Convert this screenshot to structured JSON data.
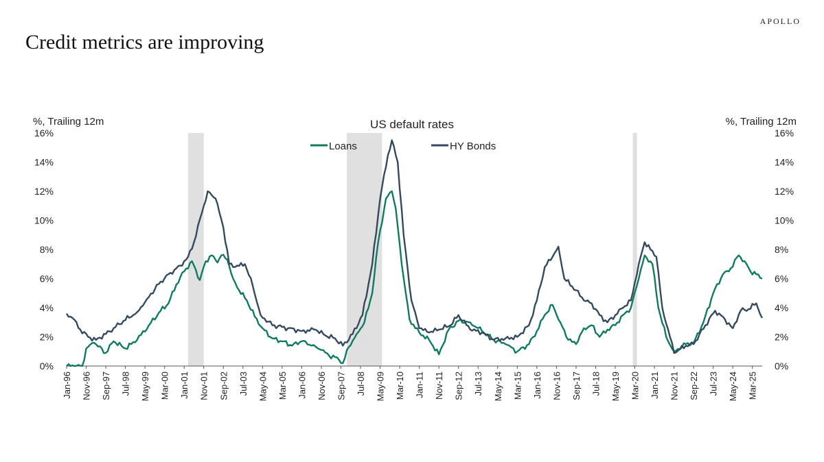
{
  "header": {
    "brand": "APOLLO",
    "headline": "Credit metrics are improving"
  },
  "colors": {
    "loans": "#0f7a5f",
    "hy_bonds": "#34495e",
    "recession_shade": "#e0e0e0",
    "axis": "#555555"
  },
  "chart_data": {
    "type": "line",
    "title": "US default rates",
    "ylabel_left": "%, Trailing 12m",
    "ylabel_right": "%, Trailing 12m",
    "ylim": [
      0,
      16
    ],
    "y_ticks": [
      "0%",
      "2%",
      "4%",
      "6%",
      "8%",
      "10%",
      "12%",
      "14%",
      "16%"
    ],
    "x_range": [
      "1996-01",
      "2025-08"
    ],
    "x_ticks": [
      "Jan-96",
      "Nov-96",
      "Sep-97",
      "Jul-98",
      "May-99",
      "Mar-00",
      "Jan-01",
      "Nov-01",
      "Sep-02",
      "Jul-03",
      "May-04",
      "Mar-05",
      "Jan-06",
      "Nov-06",
      "Sep-07",
      "Jul-08",
      "May-09",
      "Mar-10",
      "Jan-11",
      "Nov-11",
      "Sep-12",
      "Jul-13",
      "May-14",
      "Mar-15",
      "Jan-16",
      "Nov-16",
      "Sep-17",
      "Jul-18",
      "May-19",
      "Mar-20",
      "Jan-21",
      "Nov-21",
      "Sep-22",
      "Jul-23",
      "May-24",
      "Mar-25"
    ],
    "legend_position": "top-center",
    "grid": false,
    "recessions": [
      {
        "start": "2001-03",
        "end": "2001-11"
      },
      {
        "start": "2007-12",
        "end": "2009-06"
      },
      {
        "start": "2020-02",
        "end": "2020-04"
      }
    ],
    "series": [
      {
        "name": "Loans",
        "points": [
          [
            "1996-01",
            0.0
          ],
          [
            "1996-09",
            0.0
          ],
          [
            "1996-11",
            1.2
          ],
          [
            "1997-03",
            1.6
          ],
          [
            "1997-09",
            0.9
          ],
          [
            "1998-01",
            1.7
          ],
          [
            "1998-07",
            1.2
          ],
          [
            "1999-01",
            1.8
          ],
          [
            "1999-07",
            2.8
          ],
          [
            "2000-01",
            3.8
          ],
          [
            "2000-05",
            4.3
          ],
          [
            "2000-09",
            5.6
          ],
          [
            "2001-01",
            6.5
          ],
          [
            "2001-05",
            7.2
          ],
          [
            "2001-07",
            6.6
          ],
          [
            "2001-09",
            5.9
          ],
          [
            "2001-12",
            7.2
          ],
          [
            "2002-03",
            7.6
          ],
          [
            "2002-06",
            7.1
          ],
          [
            "2002-08",
            7.6
          ],
          [
            "2002-11",
            7.3
          ],
          [
            "2003-02",
            6.0
          ],
          [
            "2003-05",
            5.2
          ],
          [
            "2003-09",
            4.5
          ],
          [
            "2004-01",
            3.4
          ],
          [
            "2004-05",
            2.6
          ],
          [
            "2004-10",
            1.9
          ],
          [
            "2005-03",
            1.7
          ],
          [
            "2005-08",
            1.4
          ],
          [
            "2006-01",
            1.7
          ],
          [
            "2006-06",
            1.4
          ],
          [
            "2006-11",
            1.1
          ],
          [
            "2007-03",
            0.7
          ],
          [
            "2007-07",
            0.6
          ],
          [
            "2007-10",
            0.2
          ],
          [
            "2008-01",
            1.3
          ],
          [
            "2008-05",
            2.2
          ],
          [
            "2008-09",
            3.0
          ],
          [
            "2009-01",
            5.0
          ],
          [
            "2009-04",
            8.5
          ],
          [
            "2009-08",
            11.5
          ],
          [
            "2009-11",
            12.0
          ],
          [
            "2010-01",
            10.8
          ],
          [
            "2010-04",
            7.0
          ],
          [
            "2010-08",
            3.2
          ],
          [
            "2011-01",
            2.3
          ],
          [
            "2011-06",
            1.8
          ],
          [
            "2011-11",
            0.8
          ],
          [
            "2012-04",
            2.5
          ],
          [
            "2012-09",
            3.1
          ],
          [
            "2013-03",
            3.0
          ],
          [
            "2013-09",
            2.4
          ],
          [
            "2014-03",
            1.8
          ],
          [
            "2014-09",
            1.5
          ],
          [
            "2015-03",
            1.0
          ],
          [
            "2015-09",
            1.5
          ],
          [
            "2016-01",
            2.4
          ],
          [
            "2016-05",
            3.5
          ],
          [
            "2016-09",
            4.2
          ],
          [
            "2017-01",
            3.0
          ],
          [
            "2017-05",
            1.8
          ],
          [
            "2017-09",
            1.5
          ],
          [
            "2018-01",
            2.6
          ],
          [
            "2018-05",
            2.8
          ],
          [
            "2018-09",
            2.0
          ],
          [
            "2019-01",
            2.5
          ],
          [
            "2019-05",
            2.8
          ],
          [
            "2019-09",
            3.5
          ],
          [
            "2020-01",
            4.0
          ],
          [
            "2020-05",
            6.0
          ],
          [
            "2020-08",
            7.6
          ],
          [
            "2020-12",
            7.0
          ],
          [
            "2021-03",
            4.0
          ],
          [
            "2021-07",
            2.0
          ],
          [
            "2021-11",
            1.0
          ],
          [
            "2022-05",
            1.5
          ],
          [
            "2022-09",
            1.6
          ],
          [
            "2023-02",
            3.0
          ],
          [
            "2023-07",
            5.0
          ],
          [
            "2023-12",
            6.3
          ],
          [
            "2024-03",
            6.5
          ],
          [
            "2024-08",
            7.6
          ],
          [
            "2024-11",
            7.2
          ],
          [
            "2025-02",
            6.5
          ],
          [
            "2025-05",
            6.3
          ],
          [
            "2025-08",
            6.0
          ]
        ]
      },
      {
        "name": "HY Bonds",
        "points": [
          [
            "1996-01",
            3.6
          ],
          [
            "1996-04",
            3.3
          ],
          [
            "1996-08",
            2.5
          ],
          [
            "1996-12",
            2.0
          ],
          [
            "1997-04",
            1.8
          ],
          [
            "1997-09",
            2.2
          ],
          [
            "1998-01",
            2.6
          ],
          [
            "1998-06",
            3.1
          ],
          [
            "1999-01",
            3.7
          ],
          [
            "1999-06",
            4.6
          ],
          [
            "2000-01",
            5.8
          ],
          [
            "2000-06",
            6.4
          ],
          [
            "2000-11",
            6.9
          ],
          [
            "2001-03",
            7.5
          ],
          [
            "2001-06",
            8.5
          ],
          [
            "2001-10",
            10.5
          ],
          [
            "2002-01",
            12.0
          ],
          [
            "2002-05",
            11.5
          ],
          [
            "2002-09",
            9.5
          ],
          [
            "2002-12",
            7.0
          ],
          [
            "2003-03",
            6.8
          ],
          [
            "2003-08",
            7.0
          ],
          [
            "2003-12",
            5.5
          ],
          [
            "2004-04",
            3.5
          ],
          [
            "2004-10",
            2.8
          ],
          [
            "2005-06",
            2.6
          ],
          [
            "2006-01",
            2.4
          ],
          [
            "2006-08",
            2.5
          ],
          [
            "2007-01",
            2.1
          ],
          [
            "2007-06",
            1.9
          ],
          [
            "2007-10",
            1.4
          ],
          [
            "2008-03",
            2.2
          ],
          [
            "2008-08",
            3.5
          ],
          [
            "2009-01",
            7.0
          ],
          [
            "2009-05",
            11.5
          ],
          [
            "2009-09",
            14.5
          ],
          [
            "2009-11",
            15.5
          ],
          [
            "2010-02",
            14.0
          ],
          [
            "2010-05",
            9.0
          ],
          [
            "2010-09",
            4.5
          ],
          [
            "2011-01",
            2.6
          ],
          [
            "2011-06",
            2.3
          ],
          [
            "2011-11",
            2.5
          ],
          [
            "2012-05",
            2.8
          ],
          [
            "2012-09",
            3.5
          ],
          [
            "2013-03",
            2.5
          ],
          [
            "2013-09",
            2.3
          ],
          [
            "2014-03",
            1.8
          ],
          [
            "2014-09",
            1.9
          ],
          [
            "2015-03",
            2.0
          ],
          [
            "2015-09",
            2.8
          ],
          [
            "2016-01",
            4.5
          ],
          [
            "2016-05",
            6.8
          ],
          [
            "2016-09",
            7.5
          ],
          [
            "2016-12",
            8.2
          ],
          [
            "2017-03",
            6.0
          ],
          [
            "2017-09",
            5.2
          ],
          [
            "2018-01",
            4.5
          ],
          [
            "2018-05",
            4.3
          ],
          [
            "2018-09",
            3.5
          ],
          [
            "2019-01",
            3.0
          ],
          [
            "2019-05",
            3.5
          ],
          [
            "2019-09",
            4.0
          ],
          [
            "2020-01",
            4.5
          ],
          [
            "2020-05",
            7.0
          ],
          [
            "2020-08",
            8.5
          ],
          [
            "2020-11",
            8.0
          ],
          [
            "2021-02",
            7.5
          ],
          [
            "2021-05",
            4.0
          ],
          [
            "2021-08",
            2.5
          ],
          [
            "2021-11",
            0.9
          ],
          [
            "2022-05",
            1.4
          ],
          [
            "2022-09",
            1.5
          ],
          [
            "2023-03",
            2.8
          ],
          [
            "2023-08",
            3.8
          ],
          [
            "2024-01",
            3.2
          ],
          [
            "2024-05",
            2.6
          ],
          [
            "2024-09",
            3.8
          ],
          [
            "2025-01",
            3.9
          ],
          [
            "2025-05",
            4.3
          ],
          [
            "2025-08",
            3.3
          ]
        ]
      }
    ]
  }
}
